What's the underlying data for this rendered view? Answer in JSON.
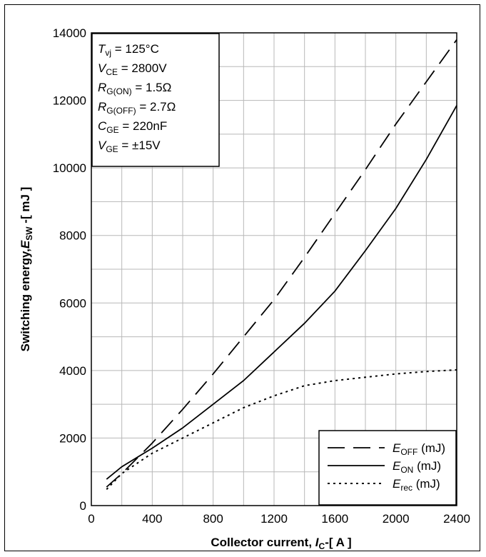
{
  "chart_data": {
    "type": "line",
    "title": "",
    "xlabel": {
      "prefix": "Collector current, ",
      "sym": "I",
      "sub": "C",
      "suffix": "-[ A ]"
    },
    "ylabel": {
      "prefix": "Switching energy,",
      "sym": "E",
      "sub": "SW",
      "suffix": " -[ mJ ]"
    },
    "xlim": [
      0,
      2400
    ],
    "ylim": [
      0,
      14000
    ],
    "xticks": [
      "0",
      "400",
      "800",
      "1200",
      "1600",
      "2000",
      "2400"
    ],
    "yticks": [
      "0",
      "2000",
      "4000",
      "6000",
      "8000",
      "10000",
      "12000",
      "14000"
    ],
    "grid": true,
    "legend_position": "bottom-right",
    "conditions": [
      {
        "sym": "T",
        "sub": "vj",
        "rest": " = 125°C"
      },
      {
        "sym": "V",
        "sub": "CE",
        "rest": " = 2800V"
      },
      {
        "sym": "R",
        "sub": "G(ON)",
        "rest": " = 1.5Ω"
      },
      {
        "sym": "R",
        "sub": "G(OFF)",
        "rest": " = 2.7Ω"
      },
      {
        "sym": "C",
        "sub": "GE",
        "rest": " = 220nF"
      },
      {
        "sym": "V",
        "sub": "GE",
        "rest": " = ±15V"
      }
    ],
    "series": [
      {
        "name": "E_OFF (mJ)",
        "legend": {
          "sym": "E",
          "sub": "OFF",
          "rest": " (mJ)"
        },
        "style": "dashed",
        "x": [
          100,
          200,
          400,
          600,
          800,
          1000,
          1200,
          1400,
          1600,
          1800,
          2000,
          2200,
          2400
        ],
        "y": [
          550,
          950,
          1850,
          2850,
          3900,
          5000,
          6100,
          7350,
          8650,
          9950,
          11300,
          12550,
          13800
        ]
      },
      {
        "name": "E_ON (mJ)",
        "legend": {
          "sym": "E",
          "sub": "ON",
          "rest": " (mJ)"
        },
        "style": "solid",
        "x": [
          100,
          200,
          400,
          600,
          800,
          1000,
          1200,
          1400,
          1600,
          1800,
          2000,
          2200,
          2400
        ],
        "y": [
          780,
          1150,
          1700,
          2300,
          3000,
          3700,
          4550,
          5400,
          6350,
          7550,
          8800,
          10250,
          11850
        ]
      },
      {
        "name": "E_rec (mJ)",
        "legend": {
          "sym": "E",
          "sub": "rec",
          "rest": " (mJ)"
        },
        "style": "dotted",
        "x": [
          100,
          200,
          400,
          600,
          800,
          1000,
          1200,
          1400,
          1600,
          1800,
          2000,
          2200,
          2400
        ],
        "y": [
          480,
          950,
          1550,
          2000,
          2450,
          2900,
          3250,
          3550,
          3700,
          3800,
          3900,
          3970,
          4020
        ]
      }
    ]
  }
}
